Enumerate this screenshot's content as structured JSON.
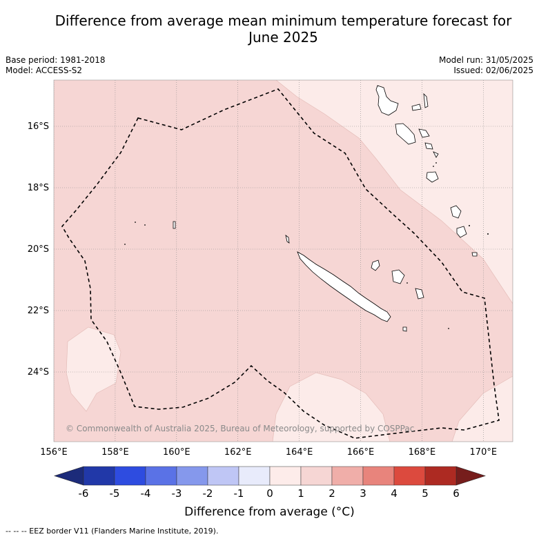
{
  "title_line1": "Difference from average mean minimum temperature forecast for",
  "title_line2": "June 2025",
  "base_period": "Base period: 1981-2018",
  "model": "Model: ACCESS-S2",
  "model_run": "Model run: 31/05/2025",
  "issued": "Issued: 02/06/2025",
  "copyright": "© Commonwealth of Australia 2025, Bureau of Meteorology, supported by COSPPac",
  "lat_labels": [
    "16°S",
    "18°S",
    "20°S",
    "22°S",
    "24°S"
  ],
  "lon_labels": [
    "156°E",
    "158°E",
    "160°E",
    "162°E",
    "164°E",
    "166°E",
    "168°E",
    "170°E"
  ],
  "colorbar": {
    "labels": [
      "-6",
      "-5",
      "-4",
      "-3",
      "-2",
      "-1",
      "0",
      "1",
      "2",
      "3",
      "4",
      "5",
      "6"
    ],
    "colors": [
      "#2138a8",
      "#2e4ce0",
      "#5a72e6",
      "#8598ec",
      "#bfc6f5",
      "#e8ebfb",
      "#fdecea",
      "#f6d6d4",
      "#f0aea9",
      "#e8847c",
      "#dc4a3e",
      "#ad2a22"
    ],
    "under_color": "#1c2b7a",
    "over_color": "#761d1c",
    "label": "Difference from average (°C)"
  },
  "map_colors": {
    "band_0_1": "#fcebe9",
    "band_1_2": "#f6d6d4"
  },
  "footnote": "--  --  -- EEZ border V11 (Flanders Marine Institute, 2019)."
}
